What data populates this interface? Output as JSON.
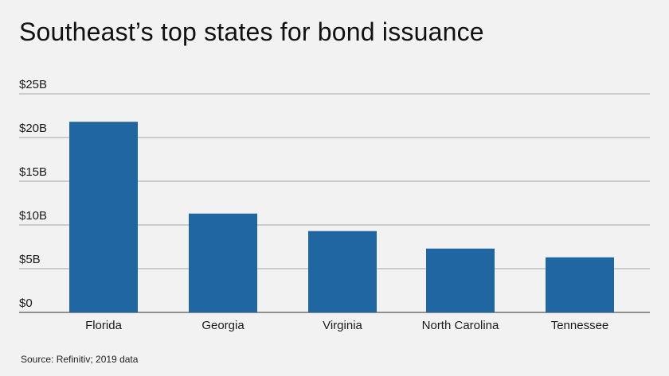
{
  "title": "Southeast’s top states for bond issuance",
  "source": "Source: Refinitiv; 2019 data",
  "colors": {
    "bar": "#1f66a3",
    "grid": "#8a8a8a",
    "background": "#f2f2f2",
    "text": "#1a1a1a"
  },
  "chart_data": {
    "type": "bar",
    "categories": [
      "Florida",
      "Georgia",
      "Virginia",
      "North Carolina",
      "Tennessee"
    ],
    "values": [
      21.8,
      11.3,
      9.3,
      7.3,
      6.3
    ],
    "ylim": [
      0,
      25
    ],
    "yticks": [
      0,
      5,
      10,
      15,
      20,
      25
    ],
    "ytick_labels": [
      "$0",
      "$5B",
      "$10B",
      "$15B",
      "$20B",
      "$25B"
    ],
    "unit": "$B",
    "grid": true,
    "legend": false
  }
}
